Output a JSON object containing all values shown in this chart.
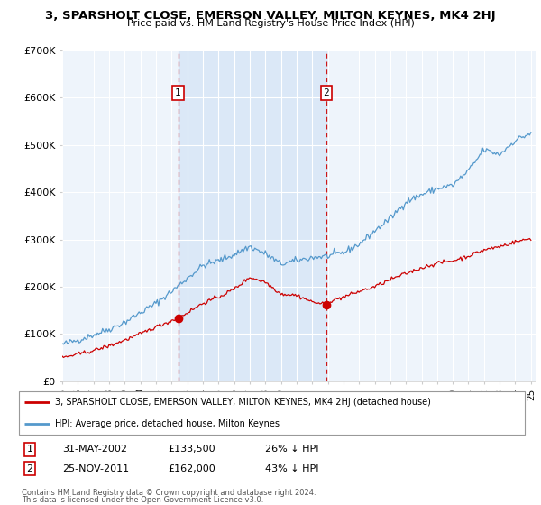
{
  "title": "3, SPARSHOLT CLOSE, EMERSON VALLEY, MILTON KEYNES, MK4 2HJ",
  "subtitle": "Price paid vs. HM Land Registry's House Price Index (HPI)",
  "ylim": [
    0,
    700000
  ],
  "yticks": [
    0,
    100000,
    200000,
    300000,
    400000,
    500000,
    600000,
    700000
  ],
  "ytick_labels": [
    "£0",
    "£100K",
    "£200K",
    "£300K",
    "£400K",
    "£500K",
    "£600K",
    "£700K"
  ],
  "hpi_color": "#5599cc",
  "hpi_fill_color": "#d0e8f8",
  "chart_bg": "#eef4fb",
  "price_color": "#cc0000",
  "sale1_date": "31-MAY-2002",
  "sale1_price": 133500,
  "sale1_label": "1",
  "sale1_hpi_pct": "26% ↓ HPI",
  "sale2_date": "25-NOV-2011",
  "sale2_price": 162000,
  "sale2_label": "2",
  "sale2_hpi_pct": "43% ↓ HPI",
  "legend_label_red": "3, SPARSHOLT CLOSE, EMERSON VALLEY, MILTON KEYNES, MK4 2HJ (detached house)",
  "legend_label_blue": "HPI: Average price, detached house, Milton Keynes",
  "footer1": "Contains HM Land Registry data © Crown copyright and database right 2024.",
  "footer2": "This data is licensed under the Open Government Licence v3.0.",
  "sale1_x": 2002.42,
  "sale2_x": 2011.9,
  "xlim_left": 1995,
  "xlim_right": 2025.3
}
